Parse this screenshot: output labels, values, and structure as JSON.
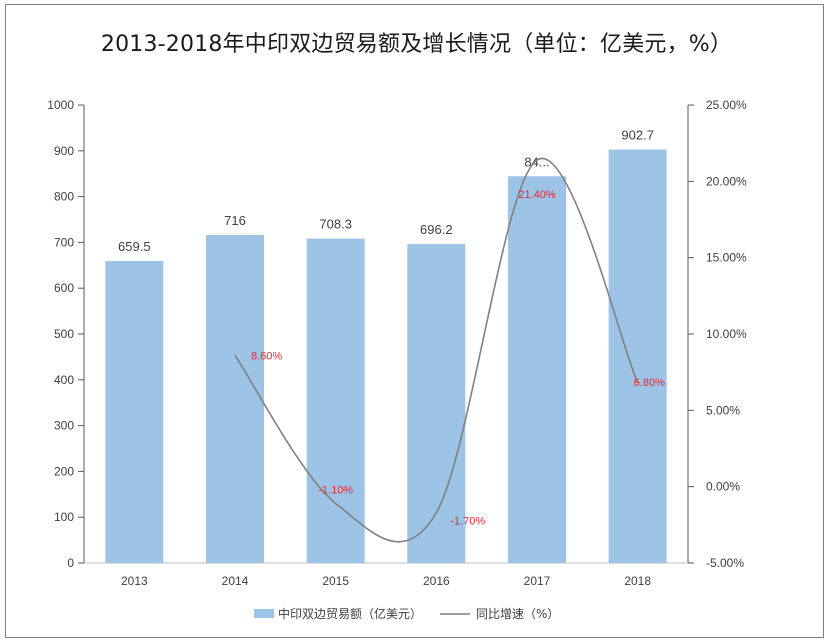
{
  "chart_data": {
    "type": "bar+line",
    "title": "2013-2018年中印双边贸易额及增长情况（单位：亿美元，%）",
    "categories": [
      "2013",
      "2014",
      "2015",
      "2016",
      "2017",
      "2018"
    ],
    "bar_series": {
      "name": "中印双边贸易额（亿美元）",
      "values": [
        659.5,
        716,
        708.3,
        696.2,
        844.4,
        902.7
      ],
      "labels": [
        "659.5",
        "716",
        "708.3",
        "696.2",
        "84...",
        "902.7"
      ],
      "color": "#9dc3e6"
    },
    "line_series": {
      "name": "同比增速（%）",
      "values": [
        null,
        8.6,
        -1.1,
        -1.7,
        21.4,
        6.8
      ],
      "labels": [
        null,
        "8.60%",
        "-1.10%",
        "-1.70%",
        "21.40%",
        "6.80%"
      ],
      "color": "#808080",
      "label_color": "#e8282d"
    },
    "y_left": {
      "min": 0,
      "max": 1000,
      "step": 100,
      "tick_labels": [
        "0",
        "100",
        "200",
        "300",
        "400",
        "500",
        "600",
        "700",
        "800",
        "900",
        "1000"
      ]
    },
    "y_right": {
      "min": -5,
      "max": 25,
      "step": 5,
      "tick_labels": [
        "-5.00%",
        "0.00%",
        "5.00%",
        "10.00%",
        "15.00%",
        "20.00%",
        "25.00%"
      ]
    },
    "legend_position": "bottom"
  }
}
